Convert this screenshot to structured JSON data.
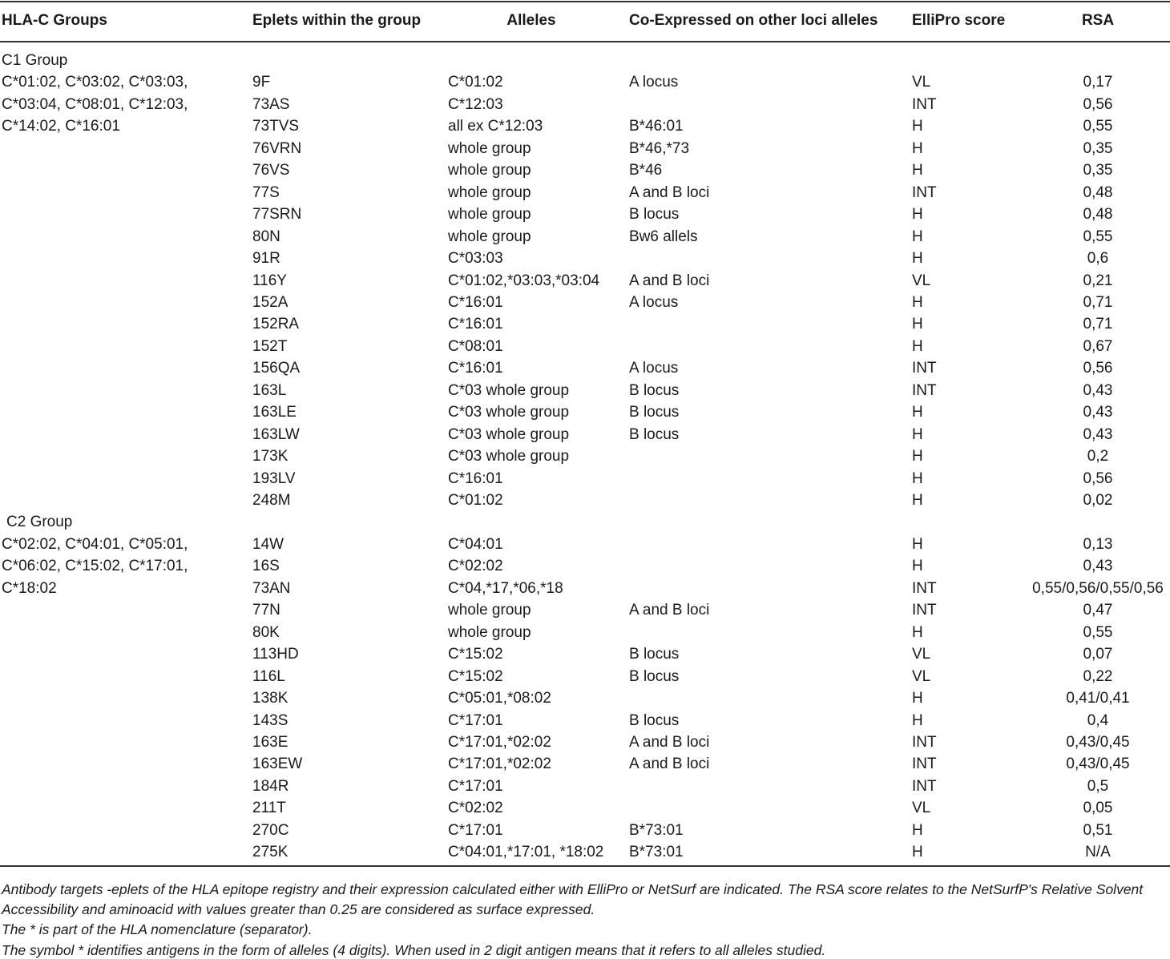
{
  "header": [
    "HLA-C Groups",
    "Eplets within the group",
    "Alleles",
    "Co-Expressed on other loci alleles",
    "ElliPro score",
    "RSA"
  ],
  "groups": [
    {
      "label": "C1 Group",
      "alleles": [
        "C*01:02, C*03:02, C*03:03,",
        "C*03:04, C*08:01, C*12:03,",
        "C*14:02, C*16:01"
      ],
      "rows": [
        [
          "9F",
          "C*01:02",
          "A locus",
          "VL",
          "0,17"
        ],
        [
          "73AS",
          "C*12:03",
          null,
          "INT",
          "0,56"
        ],
        [
          "73TVS",
          "all ex C*12:03",
          "B*46:01",
          "H",
          "0,55"
        ],
        [
          "76VRN",
          "whole group",
          "B*46,*73",
          "H",
          "0,35"
        ],
        [
          "76VS",
          "whole group",
          "B*46",
          "H",
          "0,35"
        ],
        [
          "77S",
          "whole group",
          "A and B loci",
          "INT",
          "0,48"
        ],
        [
          "77SRN",
          "whole group",
          "B locus",
          "H",
          "0,48"
        ],
        [
          "80N",
          "whole group",
          "Bw6 allels",
          "H",
          "0,55"
        ],
        [
          "91R",
          "C*03:03",
          null,
          "H",
          "0,6"
        ],
        [
          "116Y",
          "C*01:02,*03:03,*03:04",
          "A and B loci",
          "VL",
          "0,21"
        ],
        [
          "152A",
          "C*16:01",
          "A locus",
          "H",
          "0,71"
        ],
        [
          "152RA",
          "C*16:01",
          null,
          "H",
          "0,71"
        ],
        [
          "152T",
          "C*08:01",
          null,
          "H",
          "0,67"
        ],
        [
          "156QA",
          "C*16:01",
          "A locus",
          "INT",
          "0,56"
        ],
        [
          "163L",
          "C*03 whole group",
          "B locus",
          "INT",
          "0,43"
        ],
        [
          "163LE",
          "C*03 whole group",
          "B locus",
          "H",
          "0,43"
        ],
        [
          "163LW",
          "C*03 whole group",
          "B locus",
          "H",
          "0,43"
        ],
        [
          "173K",
          "C*03 whole group",
          null,
          "H",
          "0,2"
        ],
        [
          "193LV",
          "C*16:01",
          null,
          "H",
          "0,56"
        ],
        [
          "248M",
          "C*01:02",
          null,
          "H",
          "0,02"
        ]
      ]
    },
    {
      "label": "C2 Group",
      "alleles": [
        "C*02:02, C*04:01, C*05:01,",
        "C*06:02, C*15:02, C*17:01,",
        "C*18:02"
      ],
      "rows": [
        [
          "14W",
          "C*04:01",
          null,
          "H",
          "0,13"
        ],
        [
          "16S",
          "C*02:02",
          null,
          "H",
          "0,43"
        ],
        [
          "73AN",
          "C*04,*17,*06,*18",
          null,
          "INT",
          "0,55/0,56/0,55/0,56"
        ],
        [
          "77N",
          "whole group",
          "A and B loci",
          "INT",
          "0,47"
        ],
        [
          "80K",
          "whole group",
          null,
          "H",
          "0,55"
        ],
        [
          "113HD",
          "C*15:02",
          "B locus",
          "VL",
          "0,07"
        ],
        [
          "116L",
          "C*15:02",
          "B locus",
          "VL",
          "0,22"
        ],
        [
          "138K",
          "C*05:01,*08:02",
          null,
          "H",
          "0,41/0,41"
        ],
        [
          "143S",
          "C*17:01",
          "B locus",
          "H",
          "0,4"
        ],
        [
          "163E",
          "C*17:01,*02:02",
          "A and B loci",
          "INT",
          "0,43/0,45"
        ],
        [
          "163EW",
          "C*17:01,*02:02",
          "A and B loci",
          "INT",
          "0,43/0,45"
        ],
        [
          "184R",
          "C*17:01",
          null,
          "INT",
          "0,5"
        ],
        [
          "211T",
          "C*02:02",
          null,
          "VL",
          "0,05"
        ],
        [
          "270C",
          "C*17:01",
          "B*73:01",
          "H",
          "0,51"
        ],
        [
          "275K",
          "C*04:01,*17:01, *18:02",
          "B*73:01",
          "H",
          "N/A"
        ]
      ]
    }
  ],
  "footnotes": [
    "Antibody targets -eplets of the HLA epitope registry and their expression calculated either with ElliPro or NetSurf are indicated. The RSA score relates to the NetSurfP's Relative Solvent Accessibility and aminoacid with values greater than 0.25 are considered as surface expressed.",
    "The * is part of the HLA nomenclature (separator).",
    "The symbol * identifies antigens in the form of alleles (4 digits). When used in 2 digit antigen means that it refers to all alleles studied."
  ]
}
